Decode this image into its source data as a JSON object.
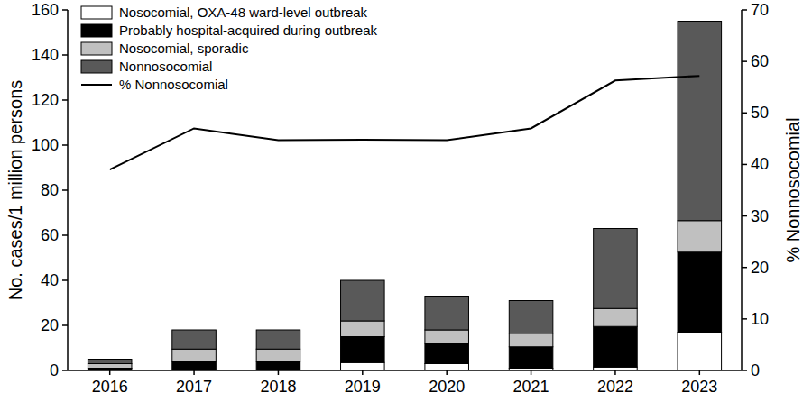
{
  "chart_data": {
    "type": "bar",
    "stacked": true,
    "grid": false,
    "legend": "upper left",
    "categories": [
      "2016",
      "2017",
      "2018",
      "2019",
      "2020",
      "2021",
      "2022",
      "2023"
    ],
    "ylabel": "No. cases/1 million persons",
    "y2label": "% Nonnosocomial",
    "ylim": [
      0,
      160
    ],
    "yticks": [
      0,
      20,
      40,
      60,
      80,
      100,
      120,
      140,
      160
    ],
    "y2lim": [
      0,
      70
    ],
    "y2ticks": [
      0,
      10,
      20,
      30,
      40,
      50,
      60,
      70
    ],
    "series": [
      {
        "name": "Nosocomial, OXA-48 ward-level outbreak",
        "type": "bar",
        "color": "#ffffff",
        "values": [
          0,
          0,
          0,
          3.5,
          3,
          1,
          1.5,
          17
        ]
      },
      {
        "name": "Probably hospital-acquired during outbreak",
        "type": "bar",
        "color": "#000000",
        "values": [
          1,
          4,
          4,
          11.5,
          9,
          9.5,
          18,
          35.5
        ]
      },
      {
        "name": "Nosocomial, sporadic",
        "type": "bar",
        "color": "#c0c0c0",
        "values": [
          2,
          5.5,
          5.5,
          7,
          6,
          6,
          8,
          14
        ]
      },
      {
        "name": "Nonnosocomial",
        "type": "bar",
        "color": "#595959",
        "values": [
          2,
          8.5,
          8.5,
          18,
          15,
          14.5,
          35.5,
          88.5
        ]
      },
      {
        "name": "% Nonnosocomial",
        "type": "line",
        "axis": "y2",
        "color": "#000000",
        "values": [
          39,
          47,
          44.7,
          44.8,
          44.7,
          47,
          56.3,
          57.2
        ]
      }
    ]
  }
}
